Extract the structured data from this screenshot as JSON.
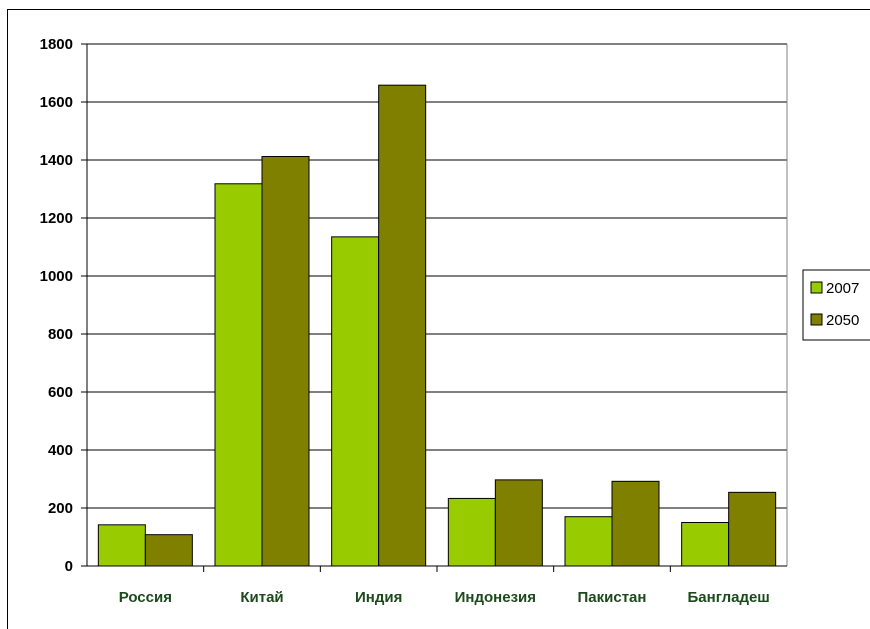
{
  "chart_data": {
    "type": "bar",
    "categories": [
      "Россия",
      "Китай",
      "Индия",
      "Индонезия",
      "Пакистан",
      "Бангладеш"
    ],
    "series": [
      {
        "name": "2007",
        "values": [
          142,
          1318,
          1135,
          233,
          170,
          150
        ]
      },
      {
        "name": "2050",
        "values": [
          108,
          1412,
          1658,
          297,
          292,
          254
        ]
      }
    ],
    "title": "",
    "xlabel": "",
    "ylabel": "",
    "ylim": [
      0,
      1800
    ],
    "yticks": [
      0,
      200,
      400,
      600,
      800,
      1000,
      1200,
      1400,
      1600,
      1800
    ],
    "grid": true,
    "legend": "right"
  },
  "colors": {
    "2007": "#99cc00",
    "2050": "#808000",
    "category_text": "#1c4a1c"
  }
}
